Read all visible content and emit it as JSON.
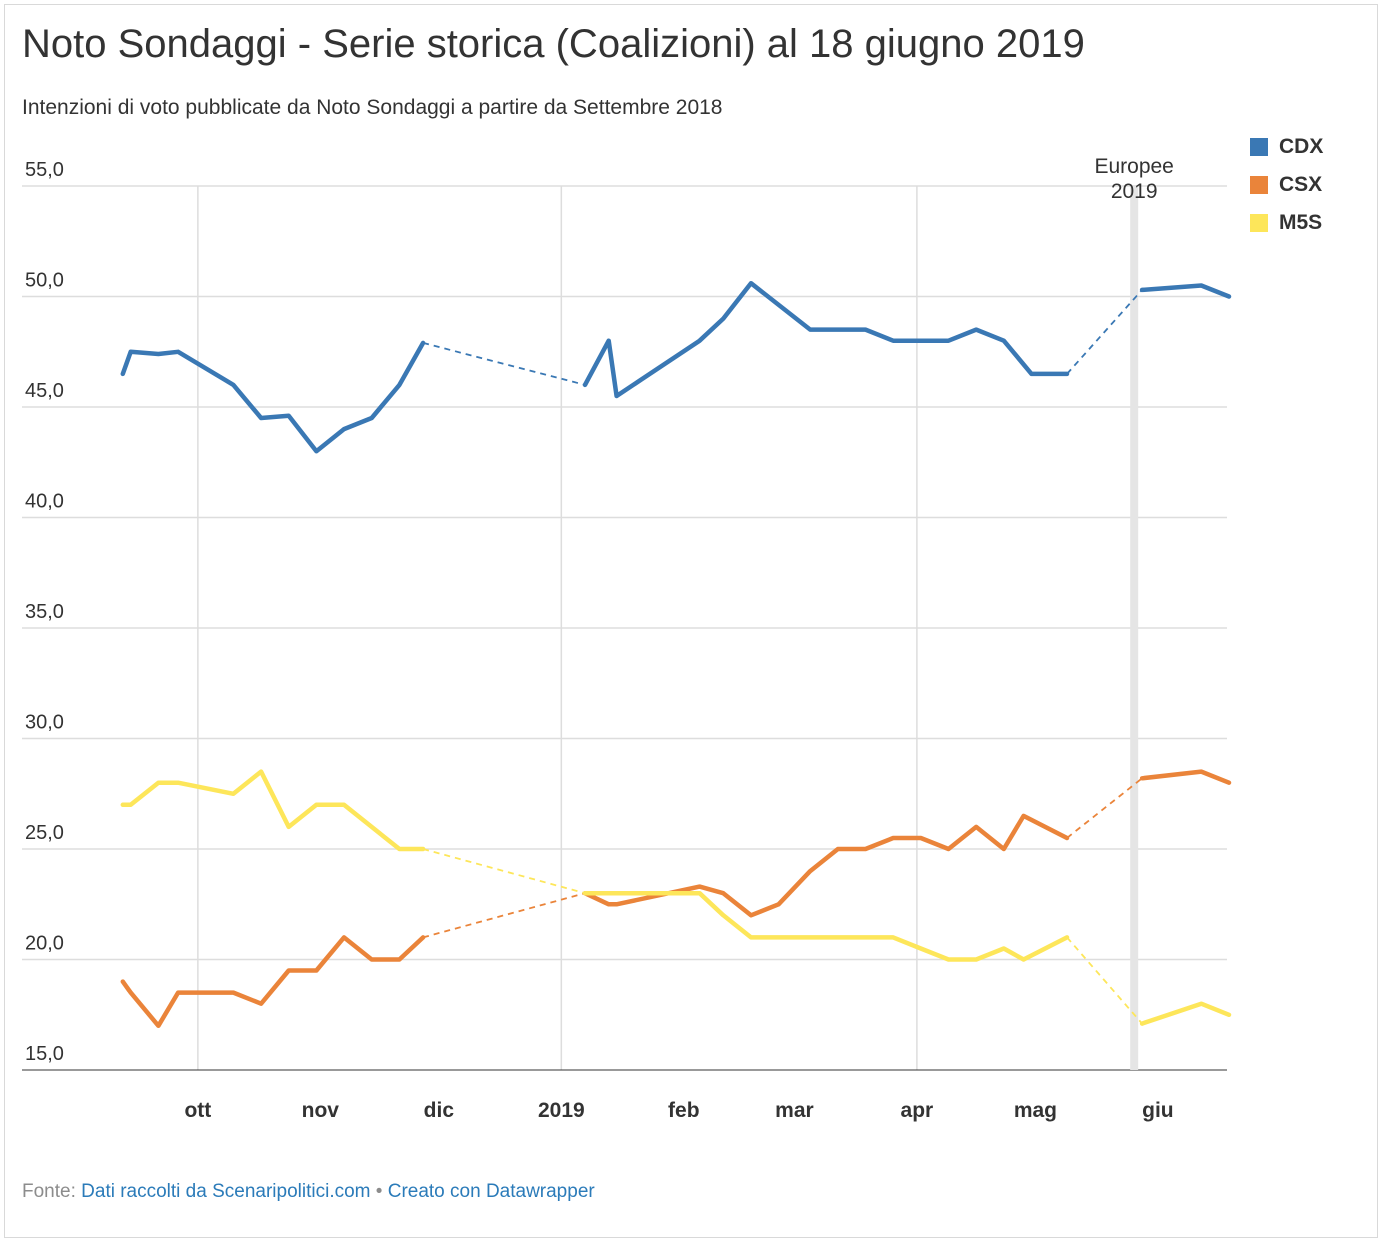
{
  "header": {
    "title": "Noto Sondaggi - Serie storica (Coalizioni) al 18 giugno 2019",
    "subtitle": "Intenzioni di voto pubblicate da Noto Sondaggi a partire da Settembre 2018"
  },
  "legend": [
    {
      "label": "CDX",
      "color": "#3a78b4"
    },
    {
      "label": "CSX",
      "color": "#ea843a"
    },
    {
      "label": "M5S",
      "color": "#fde65a"
    }
  ],
  "footer": {
    "source_prefix": "Fonte:",
    "source_link": "Dati raccolti da Scenaripolitici.com",
    "separator": "•",
    "made_with": "Creato con Datawrapper"
  },
  "chart_data": {
    "type": "line",
    "ylim": [
      15,
      55
    ],
    "xlim": [
      "2018-09-08",
      "2019-06-19"
    ],
    "yticks": [
      15,
      20,
      25,
      30,
      35,
      40,
      45,
      50,
      55
    ],
    "ytick_labels": [
      "15,0",
      "20,0",
      "25,0",
      "30,0",
      "35,0",
      "40,0",
      "45,0",
      "50,0",
      "55,0"
    ],
    "xticks": [
      {
        "date": "2018-10-01",
        "label": "ott",
        "gridline": true
      },
      {
        "date": "2018-11-01",
        "label": "nov",
        "gridline": false
      },
      {
        "date": "2018-12-01",
        "label": "dic",
        "gridline": false
      },
      {
        "date": "2019-01-01",
        "label": "2019",
        "gridline": true
      },
      {
        "date": "2019-02-01",
        "label": "feb",
        "gridline": false
      },
      {
        "date": "2019-03-01",
        "label": "mar",
        "gridline": false
      },
      {
        "date": "2019-04-01",
        "label": "apr",
        "gridline": true
      },
      {
        "date": "2019-05-01",
        "label": "mag",
        "gridline": false
      },
      {
        "date": "2019-06-01",
        "label": "giu",
        "gridline": false
      }
    ],
    "annotation": {
      "date": "2019-05-26",
      "lines": [
        "Europee",
        "2019"
      ],
      "band_color": "#e5e5e5"
    },
    "grid": true,
    "legend_position": "top-right",
    "series": [
      {
        "name": "CDX",
        "color": "#3a78b4",
        "gaps": [
          [
            "2018-11-27",
            "2019-01-07"
          ],
          [
            "2019-05-09",
            "2019-05-28"
          ]
        ],
        "points": [
          [
            "2018-09-12",
            46.5
          ],
          [
            "2018-09-14",
            47.5
          ],
          [
            "2018-09-21",
            47.4
          ],
          [
            "2018-09-26",
            47.5
          ],
          [
            "2018-10-10",
            46.0
          ],
          [
            "2018-10-17",
            44.5
          ],
          [
            "2018-10-24",
            44.6
          ],
          [
            "2018-10-31",
            43.0
          ],
          [
            "2018-11-07",
            44.0
          ],
          [
            "2018-11-14",
            44.5
          ],
          [
            "2018-11-21",
            46.0
          ],
          [
            "2018-11-27",
            47.9
          ],
          [
            "2019-01-07",
            46.0
          ],
          [
            "2019-01-13",
            48.0
          ],
          [
            "2019-01-15",
            45.5
          ],
          [
            "2019-02-05",
            48.0
          ],
          [
            "2019-02-11",
            49.0
          ],
          [
            "2019-02-18",
            50.6
          ],
          [
            "2019-03-05",
            48.5
          ],
          [
            "2019-03-19",
            48.5
          ],
          [
            "2019-03-26",
            48.0
          ],
          [
            "2019-04-09",
            48.0
          ],
          [
            "2019-04-16",
            48.5
          ],
          [
            "2019-04-23",
            48.0
          ],
          [
            "2019-04-30",
            46.5
          ],
          [
            "2019-05-09",
            46.5
          ],
          [
            "2019-05-28",
            50.3
          ],
          [
            "2019-06-12",
            50.5
          ],
          [
            "2019-06-19",
            50.0
          ]
        ]
      },
      {
        "name": "CSX",
        "color": "#ea843a",
        "gaps": [
          [
            "2018-11-27",
            "2019-01-07"
          ],
          [
            "2019-05-09",
            "2019-05-28"
          ]
        ],
        "points": [
          [
            "2018-09-12",
            19.0
          ],
          [
            "2018-09-14",
            18.5
          ],
          [
            "2018-09-21",
            17.0
          ],
          [
            "2018-09-26",
            18.5
          ],
          [
            "2018-10-10",
            18.5
          ],
          [
            "2018-10-17",
            18.0
          ],
          [
            "2018-10-24",
            19.5
          ],
          [
            "2018-10-31",
            19.5
          ],
          [
            "2018-11-07",
            21.0
          ],
          [
            "2018-11-14",
            20.0
          ],
          [
            "2018-11-21",
            20.0
          ],
          [
            "2018-11-27",
            21.0
          ],
          [
            "2019-01-07",
            23.0
          ],
          [
            "2019-01-13",
            22.5
          ],
          [
            "2019-01-15",
            22.5
          ],
          [
            "2019-02-05",
            23.3
          ],
          [
            "2019-02-11",
            23.0
          ],
          [
            "2019-02-18",
            22.0
          ],
          [
            "2019-02-25",
            22.5
          ],
          [
            "2019-03-05",
            24.0
          ],
          [
            "2019-03-12",
            25.0
          ],
          [
            "2019-03-19",
            25.0
          ],
          [
            "2019-03-26",
            25.5
          ],
          [
            "2019-04-02",
            25.5
          ],
          [
            "2019-04-09",
            25.0
          ],
          [
            "2019-04-16",
            26.0
          ],
          [
            "2019-04-23",
            25.0
          ],
          [
            "2019-04-28",
            26.5
          ],
          [
            "2019-05-09",
            25.5
          ],
          [
            "2019-05-28",
            28.2
          ],
          [
            "2019-06-12",
            28.5
          ],
          [
            "2019-06-19",
            28.0
          ]
        ]
      },
      {
        "name": "M5S",
        "color": "#fde65a",
        "gaps": [
          [
            "2018-11-27",
            "2019-01-07"
          ],
          [
            "2019-05-09",
            "2019-05-28"
          ]
        ],
        "points": [
          [
            "2018-09-12",
            27.0
          ],
          [
            "2018-09-14",
            27.0
          ],
          [
            "2018-09-21",
            28.0
          ],
          [
            "2018-09-26",
            28.0
          ],
          [
            "2018-10-10",
            27.5
          ],
          [
            "2018-10-17",
            28.5
          ],
          [
            "2018-10-24",
            26.0
          ],
          [
            "2018-10-31",
            27.0
          ],
          [
            "2018-11-07",
            27.0
          ],
          [
            "2018-11-14",
            26.0
          ],
          [
            "2018-11-21",
            25.0
          ],
          [
            "2018-11-27",
            25.0
          ],
          [
            "2019-01-07",
            23.0
          ],
          [
            "2019-01-13",
            23.0
          ],
          [
            "2019-01-15",
            23.0
          ],
          [
            "2019-02-05",
            23.0
          ],
          [
            "2019-02-11",
            22.0
          ],
          [
            "2019-02-18",
            21.0
          ],
          [
            "2019-02-25",
            21.0
          ],
          [
            "2019-03-05",
            21.0
          ],
          [
            "2019-03-12",
            21.0
          ],
          [
            "2019-03-19",
            21.0
          ],
          [
            "2019-03-26",
            21.0
          ],
          [
            "2019-04-02",
            20.5
          ],
          [
            "2019-04-09",
            20.0
          ],
          [
            "2019-04-16",
            20.0
          ],
          [
            "2019-04-23",
            20.5
          ],
          [
            "2019-04-28",
            20.0
          ],
          [
            "2019-05-09",
            21.0
          ],
          [
            "2019-05-28",
            17.1
          ],
          [
            "2019-06-12",
            18.0
          ],
          [
            "2019-06-19",
            17.5
          ]
        ]
      }
    ]
  }
}
